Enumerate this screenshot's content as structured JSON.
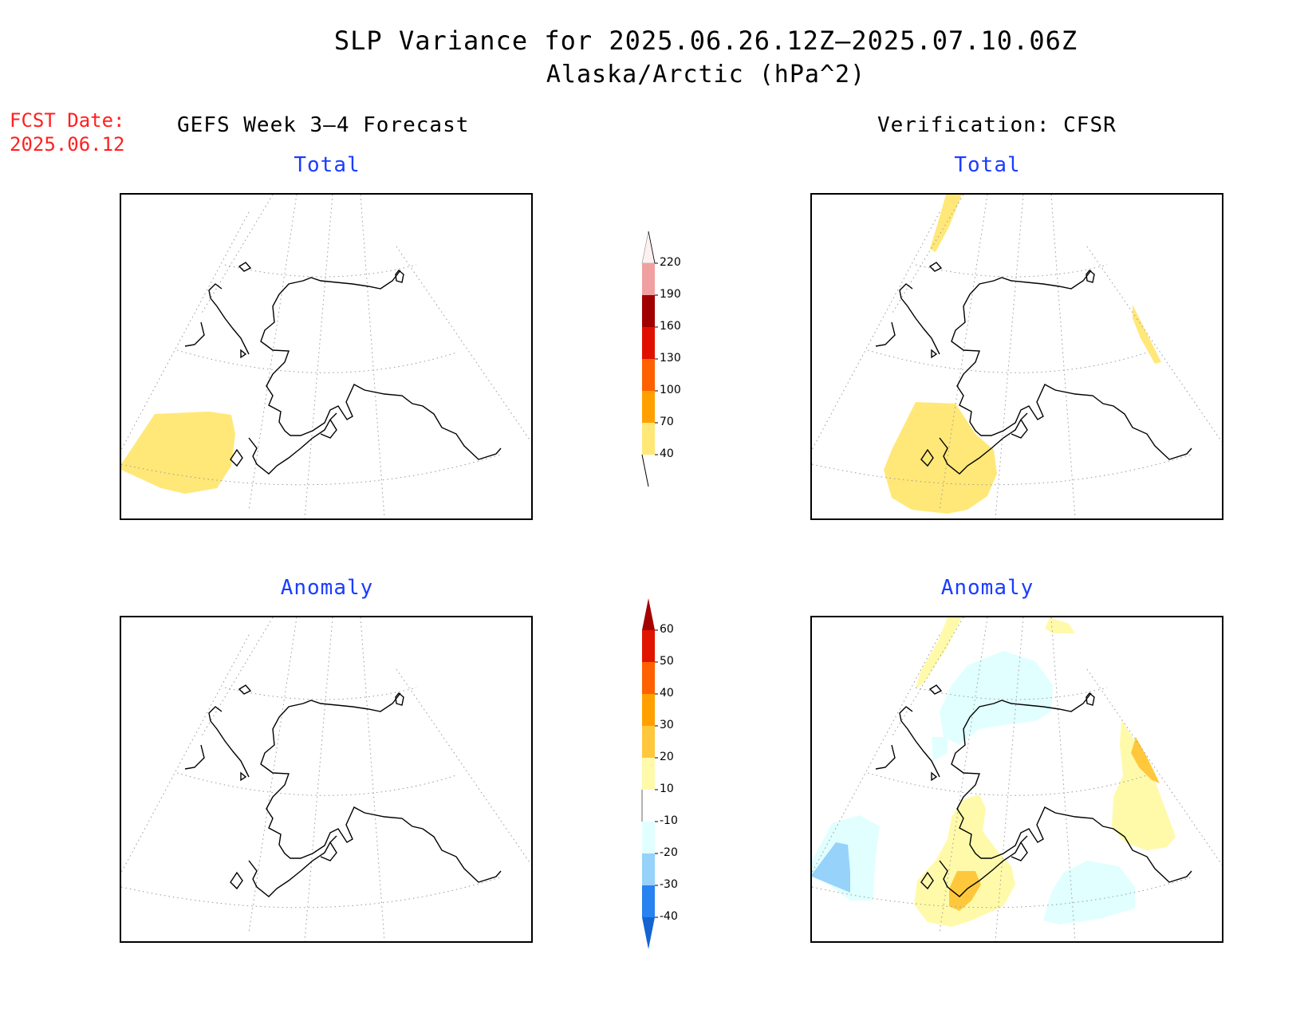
{
  "title": "SLP Variance for 2025.06.26.12Z–2025.07.10.06Z",
  "subtitle": "Alaska/Arctic (hPa^2)",
  "fcst_date_label": "FCST Date:",
  "fcst_date_value": "2025.06.12",
  "left_column_title": "GEFS Week 3–4 Forecast",
  "right_column_title": "Verification: CFSR",
  "panels": {
    "top_left_title": "Total",
    "top_right_title": "Total",
    "bottom_left_title": "Anomaly",
    "bottom_right_title": "Anomaly"
  },
  "total_colorbar": {
    "levels": [
      "40",
      "70",
      "100",
      "130",
      "160",
      "190",
      "220"
    ],
    "colors": [
      "#ffe878",
      "#ffa000",
      "#ff6000",
      "#e01000",
      "#a00000",
      "#f0a0a0",
      "#fff0f0"
    ]
  },
  "anomaly_colorbar": {
    "levels": [
      "-40",
      "-30",
      "-20",
      "-10",
      "10",
      "20",
      "30",
      "40",
      "50",
      "60"
    ],
    "colors": [
      "#1464d2",
      "#2882f0",
      "#96d2fa",
      "#e1ffff",
      "#ffffff",
      "#fffaaa",
      "#ffc83c",
      "#ffa000",
      "#ff6000",
      "#e11400",
      "#a50000"
    ]
  },
  "colors": {
    "title_blue": "#1a3cff",
    "fcst_red": "#ff2020"
  }
}
